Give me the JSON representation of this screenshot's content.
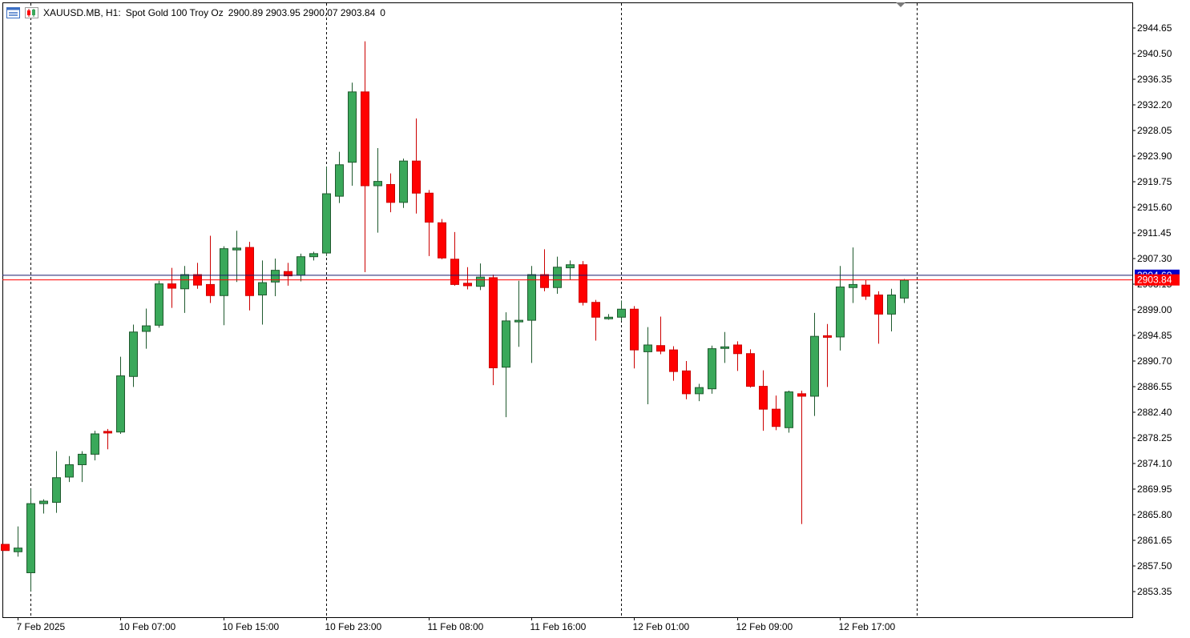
{
  "header": {
    "symbol": "XAUUSD.MB, H1:",
    "description": "Spot Gold 100 Troy Oz",
    "ohlc": "2900.89 2903.95 2900.07 2903.84",
    "extra": "0"
  },
  "price_labels": {
    "current_bid": "2903.84",
    "current_ask": "2904.60"
  },
  "colors": {
    "bull": "#3aa85a",
    "bear": "#ff0000",
    "bid_line": "#ff0000",
    "ask_line": "#1a1a6e",
    "grid": "#000000",
    "axis_text": "#000000"
  },
  "icons": {
    "menu_icon": "chart-list-icon",
    "chart_icon": "candles-icon",
    "marker": "scroll-marker-icon"
  },
  "chart_data": {
    "type": "candlestick",
    "timeframe": "H1",
    "ylim": [
      2849.2,
      2948.8
    ],
    "y_ticks": [
      "2944.65",
      "2940.50",
      "2936.35",
      "2932.20",
      "2928.05",
      "2923.90",
      "2919.75",
      "2915.60",
      "2911.45",
      "2907.30",
      "2903.15",
      "2899.00",
      "2894.85",
      "2890.70",
      "2886.55",
      "2882.40",
      "2878.25",
      "2874.10",
      "2869.95",
      "2865.80",
      "2861.65",
      "2857.50",
      "2853.35"
    ],
    "x_labels": [
      {
        "label": "7 Feb 2025",
        "bar": 1
      },
      {
        "label": "10 Feb 07:00",
        "bar": 9
      },
      {
        "label": "10 Feb 15:00",
        "bar": 17
      },
      {
        "label": "10 Feb 23:00",
        "bar": 25
      },
      {
        "label": "11 Feb 08:00",
        "bar": 33
      },
      {
        "label": "11 Feb 16:00",
        "bar": 41
      },
      {
        "label": "12 Feb 01:00",
        "bar": 49
      },
      {
        "label": "12 Feb 09:00",
        "bar": 57
      },
      {
        "label": "12 Feb 17:00",
        "bar": 65
      }
    ],
    "separators_bar": [
      2,
      25,
      48,
      71
    ],
    "candles": [
      {
        "o": 2861.0,
        "h": 2861.0,
        "l": 2860.0,
        "c": 2860.0
      },
      {
        "o": 2859.8,
        "h": 2863.9,
        "l": 2859.0,
        "c": 2860.4
      },
      {
        "o": 2856.4,
        "h": 2870.0,
        "l": 2853.4,
        "c": 2867.6
      },
      {
        "o": 2867.6,
        "h": 2868.3,
        "l": 2866.0,
        "c": 2868.0
      },
      {
        "o": 2867.8,
        "h": 2876.1,
        "l": 2866.1,
        "c": 2871.8
      },
      {
        "o": 2871.9,
        "h": 2875.3,
        "l": 2871.1,
        "c": 2873.9
      },
      {
        "o": 2873.9,
        "h": 2876.1,
        "l": 2871.1,
        "c": 2875.6
      },
      {
        "o": 2875.6,
        "h": 2879.4,
        "l": 2874.6,
        "c": 2878.9
      },
      {
        "o": 2879.3,
        "h": 2879.7,
        "l": 2876.4,
        "c": 2879.1
      },
      {
        "o": 2879.2,
        "h": 2891.4,
        "l": 2878.9,
        "c": 2888.3
      },
      {
        "o": 2888.2,
        "h": 2896.6,
        "l": 2886.5,
        "c": 2895.4
      },
      {
        "o": 2895.5,
        "h": 2899.2,
        "l": 2892.7,
        "c": 2896.4
      },
      {
        "o": 2896.5,
        "h": 2903.7,
        "l": 2896.1,
        "c": 2903.2
      },
      {
        "o": 2903.2,
        "h": 2905.8,
        "l": 2899.3,
        "c": 2902.5
      },
      {
        "o": 2902.4,
        "h": 2906.1,
        "l": 2898.5,
        "c": 2904.7
      },
      {
        "o": 2904.7,
        "h": 2906.6,
        "l": 2902.4,
        "c": 2903.0
      },
      {
        "o": 2903.1,
        "h": 2911.0,
        "l": 2900.1,
        "c": 2901.3
      },
      {
        "o": 2901.3,
        "h": 2909.3,
        "l": 2896.5,
        "c": 2908.9
      },
      {
        "o": 2908.7,
        "h": 2911.8,
        "l": 2903.5,
        "c": 2909.0
      },
      {
        "o": 2909.1,
        "h": 2910.0,
        "l": 2898.9,
        "c": 2901.3
      },
      {
        "o": 2901.4,
        "h": 2907.0,
        "l": 2896.6,
        "c": 2903.4
      },
      {
        "o": 2903.5,
        "h": 2907.3,
        "l": 2901.2,
        "c": 2905.4
      },
      {
        "o": 2905.2,
        "h": 2906.6,
        "l": 2902.9,
        "c": 2904.5
      },
      {
        "o": 2904.6,
        "h": 2908.1,
        "l": 2903.6,
        "c": 2907.6
      },
      {
        "o": 2907.6,
        "h": 2908.4,
        "l": 2907.0,
        "c": 2908.1
      },
      {
        "o": 2908.2,
        "h": 2922.2,
        "l": 2907.7,
        "c": 2917.8
      },
      {
        "o": 2917.4,
        "h": 2924.6,
        "l": 2916.3,
        "c": 2922.5
      },
      {
        "o": 2922.9,
        "h": 2935.8,
        "l": 2919.1,
        "c": 2934.3
      },
      {
        "o": 2934.3,
        "h": 2942.5,
        "l": 2905.1,
        "c": 2919.1
      },
      {
        "o": 2919.1,
        "h": 2925.2,
        "l": 2911.5,
        "c": 2919.8
      },
      {
        "o": 2919.3,
        "h": 2921.1,
        "l": 2914.8,
        "c": 2916.4
      },
      {
        "o": 2916.4,
        "h": 2923.5,
        "l": 2915.5,
        "c": 2923.1
      },
      {
        "o": 2923.1,
        "h": 2930.0,
        "l": 2914.6,
        "c": 2917.9
      },
      {
        "o": 2917.9,
        "h": 2918.4,
        "l": 2907.7,
        "c": 2913.2
      },
      {
        "o": 2913.1,
        "h": 2913.7,
        "l": 2907.2,
        "c": 2907.4
      },
      {
        "o": 2907.2,
        "h": 2911.6,
        "l": 2902.9,
        "c": 2903.1
      },
      {
        "o": 2903.3,
        "h": 2905.9,
        "l": 2902.3,
        "c": 2902.9
      },
      {
        "o": 2902.8,
        "h": 2906.5,
        "l": 2902.2,
        "c": 2904.3
      },
      {
        "o": 2904.2,
        "h": 2904.7,
        "l": 2886.8,
        "c": 2889.6
      },
      {
        "o": 2889.7,
        "h": 2898.6,
        "l": 2881.6,
        "c": 2897.2
      },
      {
        "o": 2897.3,
        "h": 2903.7,
        "l": 2893.0,
        "c": 2897.3
      },
      {
        "o": 2897.3,
        "h": 2906.1,
        "l": 2890.4,
        "c": 2904.7
      },
      {
        "o": 2904.7,
        "h": 2908.8,
        "l": 2902.0,
        "c": 2902.6
      },
      {
        "o": 2902.6,
        "h": 2907.6,
        "l": 2901.6,
        "c": 2905.9
      },
      {
        "o": 2905.8,
        "h": 2907.0,
        "l": 2903.9,
        "c": 2906.3
      },
      {
        "o": 2906.3,
        "h": 2906.9,
        "l": 2899.7,
        "c": 2900.2
      },
      {
        "o": 2900.2,
        "h": 2900.6,
        "l": 2894.0,
        "c": 2897.8
      },
      {
        "o": 2897.8,
        "h": 2898.3,
        "l": 2897.4,
        "c": 2897.8
      },
      {
        "o": 2897.8,
        "h": 2900.5,
        "l": 2897.2,
        "c": 2899.1
      },
      {
        "o": 2899.1,
        "h": 2899.6,
        "l": 2889.5,
        "c": 2892.5
      },
      {
        "o": 2892.2,
        "h": 2896.2,
        "l": 2883.7,
        "c": 2893.3
      },
      {
        "o": 2893.2,
        "h": 2897.9,
        "l": 2891.8,
        "c": 2892.3
      },
      {
        "o": 2892.5,
        "h": 2893.1,
        "l": 2887.5,
        "c": 2889.0
      },
      {
        "o": 2889.1,
        "h": 2890.7,
        "l": 2884.5,
        "c": 2885.4
      },
      {
        "o": 2885.4,
        "h": 2887.0,
        "l": 2884.2,
        "c": 2886.4
      },
      {
        "o": 2886.2,
        "h": 2893.2,
        "l": 2885.4,
        "c": 2892.7
      },
      {
        "o": 2892.8,
        "h": 2895.4,
        "l": 2890.4,
        "c": 2893.0
      },
      {
        "o": 2893.3,
        "h": 2893.9,
        "l": 2889.1,
        "c": 2891.9
      },
      {
        "o": 2891.9,
        "h": 2892.6,
        "l": 2886.4,
        "c": 2886.6
      },
      {
        "o": 2886.6,
        "h": 2889.2,
        "l": 2879.4,
        "c": 2882.9
      },
      {
        "o": 2882.9,
        "h": 2885.1,
        "l": 2879.5,
        "c": 2880.1
      },
      {
        "o": 2879.9,
        "h": 2885.9,
        "l": 2879.1,
        "c": 2885.7
      },
      {
        "o": 2885.4,
        "h": 2885.9,
        "l": 2864.3,
        "c": 2885.0
      },
      {
        "o": 2885.0,
        "h": 2898.5,
        "l": 2881.8,
        "c": 2894.7
      },
      {
        "o": 2894.8,
        "h": 2896.7,
        "l": 2886.5,
        "c": 2894.6
      },
      {
        "o": 2894.6,
        "h": 2906.1,
        "l": 2892.4,
        "c": 2902.7
      },
      {
        "o": 2902.6,
        "h": 2909.1,
        "l": 2900.1,
        "c": 2903.1
      },
      {
        "o": 2903.0,
        "h": 2903.8,
        "l": 2900.6,
        "c": 2901.2
      },
      {
        "o": 2901.4,
        "h": 2902.0,
        "l": 2893.5,
        "c": 2898.3
      },
      {
        "o": 2898.3,
        "h": 2902.4,
        "l": 2895.5,
        "c": 2901.4
      },
      {
        "o": 2900.9,
        "h": 2904.0,
        "l": 2900.1,
        "c": 2903.8
      }
    ]
  }
}
